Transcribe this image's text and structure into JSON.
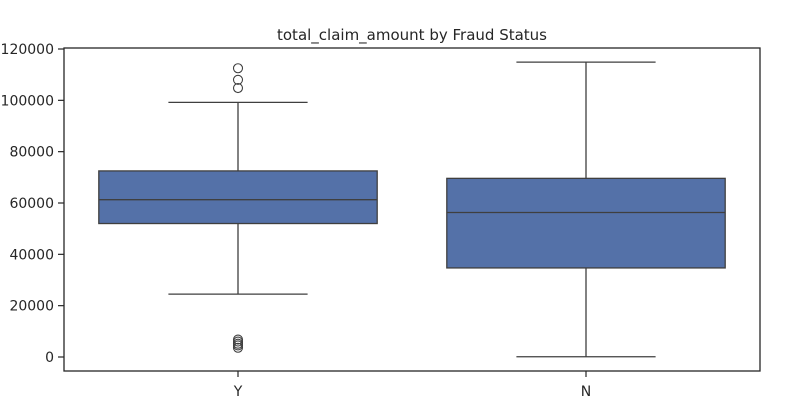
{
  "chart_data": {
    "type": "box",
    "title": "total_claim_amount by Fraud Status",
    "xlabel": "",
    "ylabel": "",
    "categories": [
      "Y",
      "N"
    ],
    "ylim": [
      -5000,
      122000
    ],
    "yticks": [
      0,
      20000,
      40000,
      60000,
      80000,
      100000,
      120000
    ],
    "ytick_labels": [
      "0",
      "20000",
      "40000",
      "60000",
      "80000",
      "100000",
      "120000"
    ],
    "grid": false,
    "box_color": "#5471a8",
    "line_color": "#3f3f3f",
    "boxes": [
      {
        "category": "Y",
        "whisker_low": 24500,
        "q1": 52000,
        "median": 61300,
        "q3": 72500,
        "whisker_high": 99200,
        "outliers": [
          112500,
          108000,
          104800,
          6800,
          6000,
          5200,
          4500,
          3600
        ]
      },
      {
        "category": "N",
        "whisker_low": 100,
        "q1": 34700,
        "median": 56300,
        "q3": 69600,
        "whisker_high": 114900,
        "outliers": []
      }
    ]
  }
}
